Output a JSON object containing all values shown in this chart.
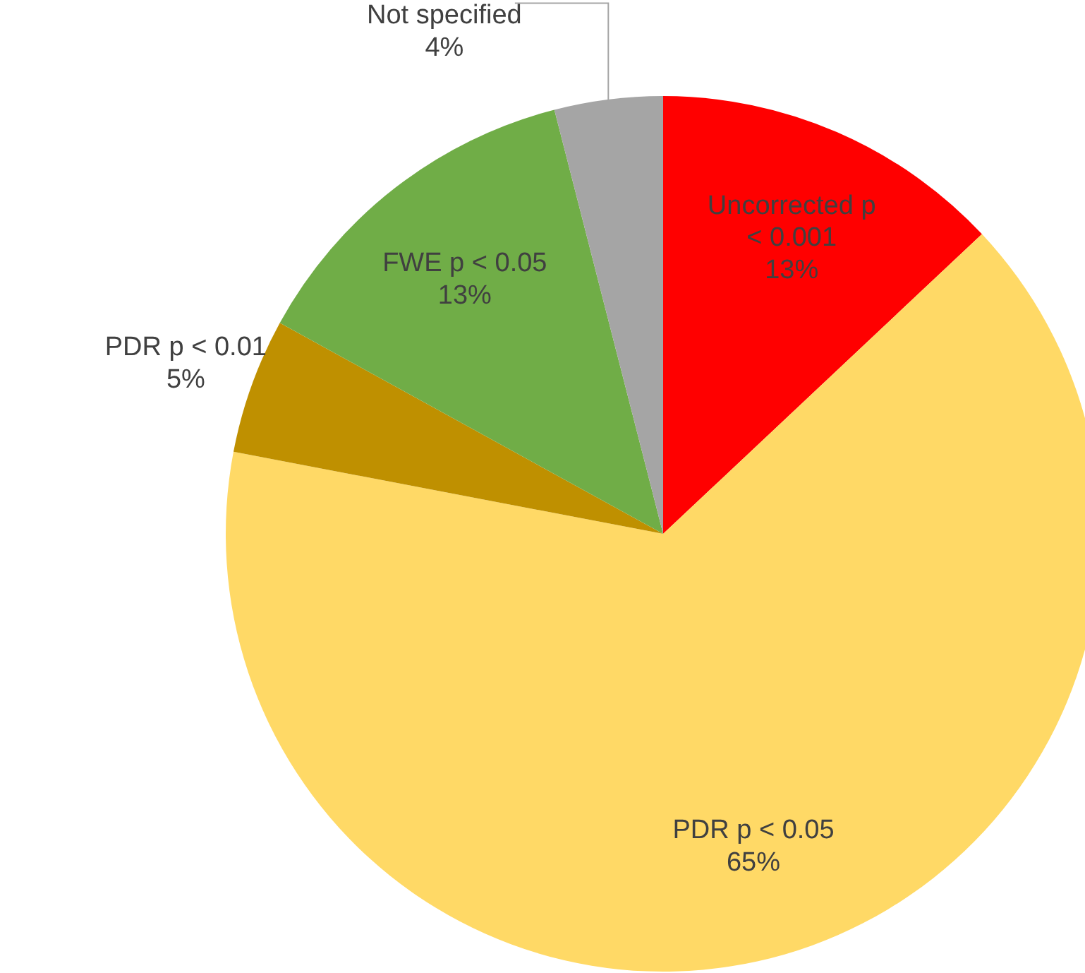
{
  "chart_data": {
    "type": "pie",
    "categories": [
      "Uncorrected p < 0.001",
      "PDR p < 0.05",
      "PDR p < 0.01",
      "FWE p < 0.05",
      "Not specified"
    ],
    "values": [
      13,
      65,
      5,
      13,
      4
    ],
    "colors": [
      "#ff0000",
      "#ffd966",
      "#bf9000",
      "#70ad47",
      "#a5a5a5"
    ],
    "value_labels": [
      "13%",
      "65%",
      "5%",
      "13%",
      "4%"
    ]
  }
}
